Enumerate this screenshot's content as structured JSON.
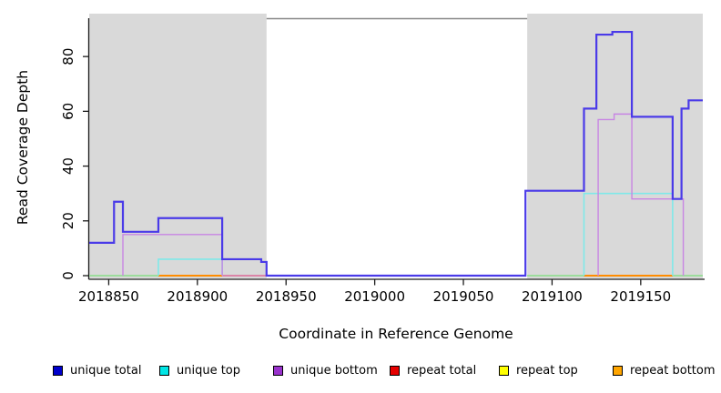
{
  "chart_data": {
    "type": "step-line",
    "title": "",
    "xlabel": "Coordinate in Reference Genome",
    "ylabel": "Read Coverage Depth",
    "x_ticks": [
      2018850,
      2018900,
      2018950,
      2019000,
      2019050,
      2019100,
      2019150
    ],
    "y_ticks": [
      0,
      20,
      40,
      60,
      80
    ],
    "xlim": [
      2018839,
      2019185
    ],
    "ylim": [
      0,
      94
    ],
    "grid": false,
    "legend_position": "bottom",
    "shaded_regions": [
      {
        "name": "left-coverage-region",
        "x1": 2018839,
        "x2": 2018939,
        "color": "#d9d9d9"
      },
      {
        "name": "right-coverage-region",
        "x1": 2019086,
        "x2": 2019185,
        "color": "#d9d9d9"
      }
    ],
    "baseline_segments": [
      {
        "x1": 2018839,
        "x2": 2018878,
        "y": 0,
        "color": "#9cdc9c"
      },
      {
        "x1": 2018878,
        "x2": 2018914,
        "y": 0,
        "color": "#ff8c00"
      },
      {
        "x1": 2018914,
        "x2": 2018939,
        "y": 0,
        "color": "#db84a7"
      },
      {
        "x1": 2019086,
        "x2": 2019118,
        "y": 0,
        "color": "#9cdc9c"
      },
      {
        "x1": 2019118,
        "x2": 2019168,
        "y": 0,
        "color": "#ff8c00"
      },
      {
        "x1": 2019168,
        "x2": 2019185,
        "y": 0,
        "color": "#9cdc9c"
      }
    ],
    "series": [
      {
        "name": "unique top",
        "color": "#7fe9e9",
        "stroke_width": 1.6,
        "segments": [
          [
            [
              2018878,
              0
            ],
            [
              2018878,
              6
            ],
            [
              2018914,
              6
            ],
            [
              2018914,
              0
            ]
          ],
          [
            [
              2019118,
              0
            ],
            [
              2019118,
              30
            ],
            [
              2019168,
              30
            ],
            [
              2019168,
              0
            ]
          ]
        ]
      },
      {
        "name": "unique bottom",
        "color": "#c885e3",
        "stroke_width": 1.4,
        "segments": [
          [
            [
              2018858,
              0
            ],
            [
              2018858,
              15
            ],
            [
              2018914,
              15
            ],
            [
              2018914,
              0
            ]
          ],
          [
            [
              2019126,
              0
            ],
            [
              2019126,
              57
            ],
            [
              2019135,
              57
            ],
            [
              2019135,
              59
            ],
            [
              2019145,
              59
            ],
            [
              2019145,
              28
            ],
            [
              2019174,
              28
            ],
            [
              2019174,
              0
            ]
          ]
        ]
      },
      {
        "name": "unique total",
        "color": "#4a3ae8",
        "stroke_width": 2.2,
        "segments": [
          [
            [
              2018839,
              12
            ],
            [
              2018853,
              12
            ],
            [
              2018853,
              27
            ],
            [
              2018858,
              27
            ],
            [
              2018858,
              16
            ],
            [
              2018878,
              16
            ],
            [
              2018878,
              21
            ],
            [
              2018914,
              21
            ],
            [
              2018914,
              6
            ],
            [
              2018936,
              6
            ],
            [
              2018936,
              5
            ],
            [
              2018939,
              5
            ],
            [
              2018939,
              0
            ],
            [
              2019085,
              0
            ],
            [
              2019085,
              31
            ],
            [
              2019118,
              31
            ],
            [
              2019118,
              61
            ],
            [
              2019125,
              61
            ],
            [
              2019125,
              88
            ],
            [
              2019134,
              88
            ],
            [
              2019134,
              89
            ],
            [
              2019145,
              89
            ],
            [
              2019145,
              58
            ],
            [
              2019168,
              58
            ],
            [
              2019168,
              28
            ],
            [
              2019173,
              28
            ],
            [
              2019173,
              61
            ],
            [
              2019177,
              61
            ],
            [
              2019177,
              64
            ],
            [
              2019185,
              64
            ]
          ]
        ]
      }
    ],
    "legend": [
      {
        "label": "unique total",
        "color": "#0000cc"
      },
      {
        "label": "unique top",
        "color": "#00e5e5"
      },
      {
        "label": "unique bottom",
        "color": "#9932cc"
      },
      {
        "label": "repeat total",
        "color": "#e60000"
      },
      {
        "label": "repeat top",
        "color": "#ffff00"
      },
      {
        "label": "repeat bottom",
        "color": "#ffa500"
      }
    ],
    "colors": {
      "shaded_region": "#d9d9d9",
      "plot_border": "#888888",
      "axis": "#1a1a1a"
    }
  }
}
